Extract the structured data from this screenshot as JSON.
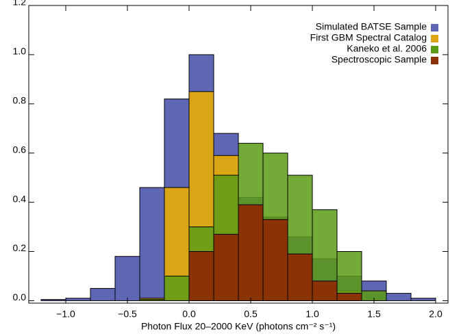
{
  "chart_data": {
    "type": "histogram",
    "xlabel": "Photon Flux 20–2000 KeV (photons cm⁻² s⁻¹)",
    "bins": [
      -1.2,
      -1.0,
      -0.8,
      -0.6,
      -0.4,
      -0.2,
      0.0,
      0.2,
      0.4,
      0.6,
      0.8,
      1.0,
      1.2,
      1.4,
      1.6,
      1.8,
      2.0
    ],
    "series": [
      {
        "name": "Simulated BATSE Sample",
        "color": "#5f66b3",
        "values": [
          0.005,
          0.01,
          0.05,
          0.18,
          0.46,
          0.82,
          1.0,
          0.68,
          0.42,
          0.34,
          0.26,
          0.17,
          0.1,
          0.08,
          0.03,
          0.01
        ]
      },
      {
        "name": "First GBM Spectral Catalog",
        "color": "#dba616",
        "values": [
          0,
          0,
          0,
          0,
          0.01,
          0.46,
          0.85,
          0.59,
          0.35,
          0.25,
          0.12,
          0.07,
          0.04,
          0,
          0,
          0
        ]
      },
      {
        "name": "Kaneko et al. 2006",
        "color": "#5c9b15",
        "values": [
          0,
          0,
          0,
          0,
          0.005,
          0.1,
          0.3,
          0.51,
          0.64,
          0.6,
          0.51,
          0.37,
          0.2,
          0.04,
          0,
          0
        ]
      },
      {
        "name": "Spectroscopic Sample",
        "color": "#8b3307",
        "values": [
          0,
          0,
          0,
          0,
          0,
          0,
          0.2,
          0.27,
          0.39,
          0.33,
          0.19,
          0.08,
          0.03,
          0,
          0,
          0
        ]
      }
    ],
    "xlim": [
      -1.3,
      2.1
    ],
    "ylim": [
      -0.01,
      1.2
    ],
    "xticks": [
      {
        "value": -1.0,
        "label": "−1.0"
      },
      {
        "value": -0.5,
        "label": "−0.5"
      },
      {
        "value": 0.0,
        "label": "0.0"
      },
      {
        "value": 0.5,
        "label": "0.5"
      },
      {
        "value": 1.0,
        "label": "1.0"
      },
      {
        "value": 1.5,
        "label": "1.5"
      },
      {
        "value": 2.0,
        "label": "2.0"
      }
    ],
    "yticks": [
      {
        "value": 0.0,
        "label": "0.0"
      },
      {
        "value": 0.2,
        "label": "0.2"
      },
      {
        "value": 0.4,
        "label": "0.4"
      },
      {
        "value": 0.6,
        "label": "0.6"
      },
      {
        "value": 0.8,
        "label": "0.8"
      },
      {
        "value": 1.0,
        "label": "1.0"
      },
      {
        "value": 1.2,
        "label": "1.2"
      }
    ],
    "legend": "upper right"
  }
}
